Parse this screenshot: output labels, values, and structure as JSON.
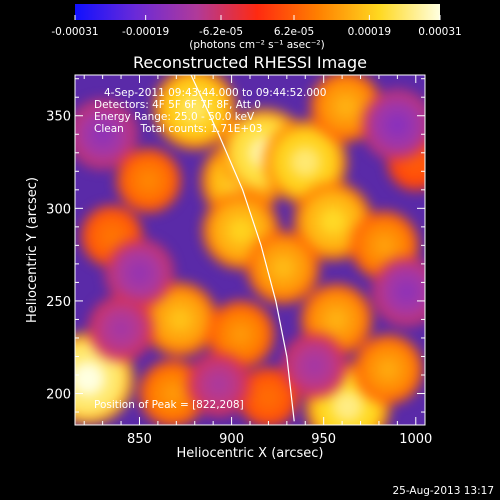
{
  "chart_data": {
    "type": "heatmap",
    "title": "Reconstructed RHESSI Image",
    "xlabel": "Heliocentric X (arcsec)",
    "ylabel": "Heliocentric Y (arcsec)",
    "xlim": [
      815,
      1005
    ],
    "ylim": [
      183,
      372
    ],
    "xticks": [
      850,
      900,
      950,
      1000
    ],
    "xtick_labels": [
      "850",
      "900",
      "950",
      "1000"
    ],
    "yticks": [
      200,
      250,
      300,
      350
    ],
    "ytick_labels": [
      "200",
      "250",
      "300",
      "350"
    ],
    "colorbar": {
      "min": -0.00031,
      "max": 0.00031,
      "ticks": [
        -0.00031,
        -0.00019,
        -6.2e-05,
        6.2e-05,
        0.00019,
        0.00031
      ],
      "tick_labels": [
        "-0.00031",
        "-0.00019",
        "-6.2e-05",
        "6.2e-05",
        "0.00019",
        "0.00031"
      ],
      "units_label": "(photons cm⁻² s⁻¹ asec⁻²)",
      "colors": [
        "#1010ff",
        "#6a2ad8",
        "#b03a9a",
        "#ff2a10",
        "#ff8000",
        "#ffd820",
        "#ffffe0"
      ]
    },
    "annotations": [
      "4-Sep-2011 09:43:44.000 to 09:44:52.000",
      "Detectors: 4F 5F 6F 7F 8F, Att 0",
      "Energy Range: 25.0 - 50.0 keV",
      "Clean     Total counts: 1.71E+03"
    ],
    "peak_label": "Position of Peak = [822,208]",
    "limb_curve": [
      [
        878,
        372
      ],
      [
        893,
        340
      ],
      [
        906,
        310
      ],
      [
        916,
        280
      ],
      [
        924,
        250
      ],
      [
        930,
        220
      ],
      [
        934,
        185
      ]
    ],
    "sources": [
      {
        "x": 822,
        "y": 208,
        "v": 0.00031
      },
      {
        "x": 880,
        "y": 354,
        "v": 0.00024
      },
      {
        "x": 905,
        "y": 315,
        "v": 0.00022
      },
      {
        "x": 918,
        "y": 330,
        "v": 0.00028
      },
      {
        "x": 940,
        "y": 325,
        "v": 0.00025
      },
      {
        "x": 905,
        "y": 288,
        "v": 0.0002
      },
      {
        "x": 955,
        "y": 293,
        "v": 0.00021
      },
      {
        "x": 962,
        "y": 355,
        "v": 0.00016
      },
      {
        "x": 872,
        "y": 240,
        "v": 0.00018
      },
      {
        "x": 905,
        "y": 232,
        "v": 0.00013
      },
      {
        "x": 928,
        "y": 268,
        "v": 0.00017
      },
      {
        "x": 957,
        "y": 240,
        "v": 0.00016
      },
      {
        "x": 983,
        "y": 280,
        "v": 0.00014
      },
      {
        "x": 963,
        "y": 193,
        "v": 0.00026
      },
      {
        "x": 868,
        "y": 200,
        "v": 0.00013
      },
      {
        "x": 835,
        "y": 285,
        "v": 9e-05
      },
      {
        "x": 855,
        "y": 315,
        "v": 0.00011
      },
      {
        "x": 985,
        "y": 213,
        "v": 0.00015
      },
      {
        "x": 920,
        "y": 198,
        "v": 8e-05
      },
      {
        "x": 1000,
        "y": 325,
        "v": 6e-05
      },
      {
        "x": 830,
        "y": 340,
        "v": -0.00015
      },
      {
        "x": 850,
        "y": 265,
        "v": -0.00014
      },
      {
        "x": 990,
        "y": 345,
        "v": -0.00016
      },
      {
        "x": 995,
        "y": 255,
        "v": -0.00015
      },
      {
        "x": 945,
        "y": 215,
        "v": -0.00012
      },
      {
        "x": 893,
        "y": 205,
        "v": -0.00011
      },
      {
        "x": 840,
        "y": 235,
        "v": -0.00012
      }
    ]
  },
  "footer": {
    "timestamp": "25-Aug-2013 13:17"
  }
}
